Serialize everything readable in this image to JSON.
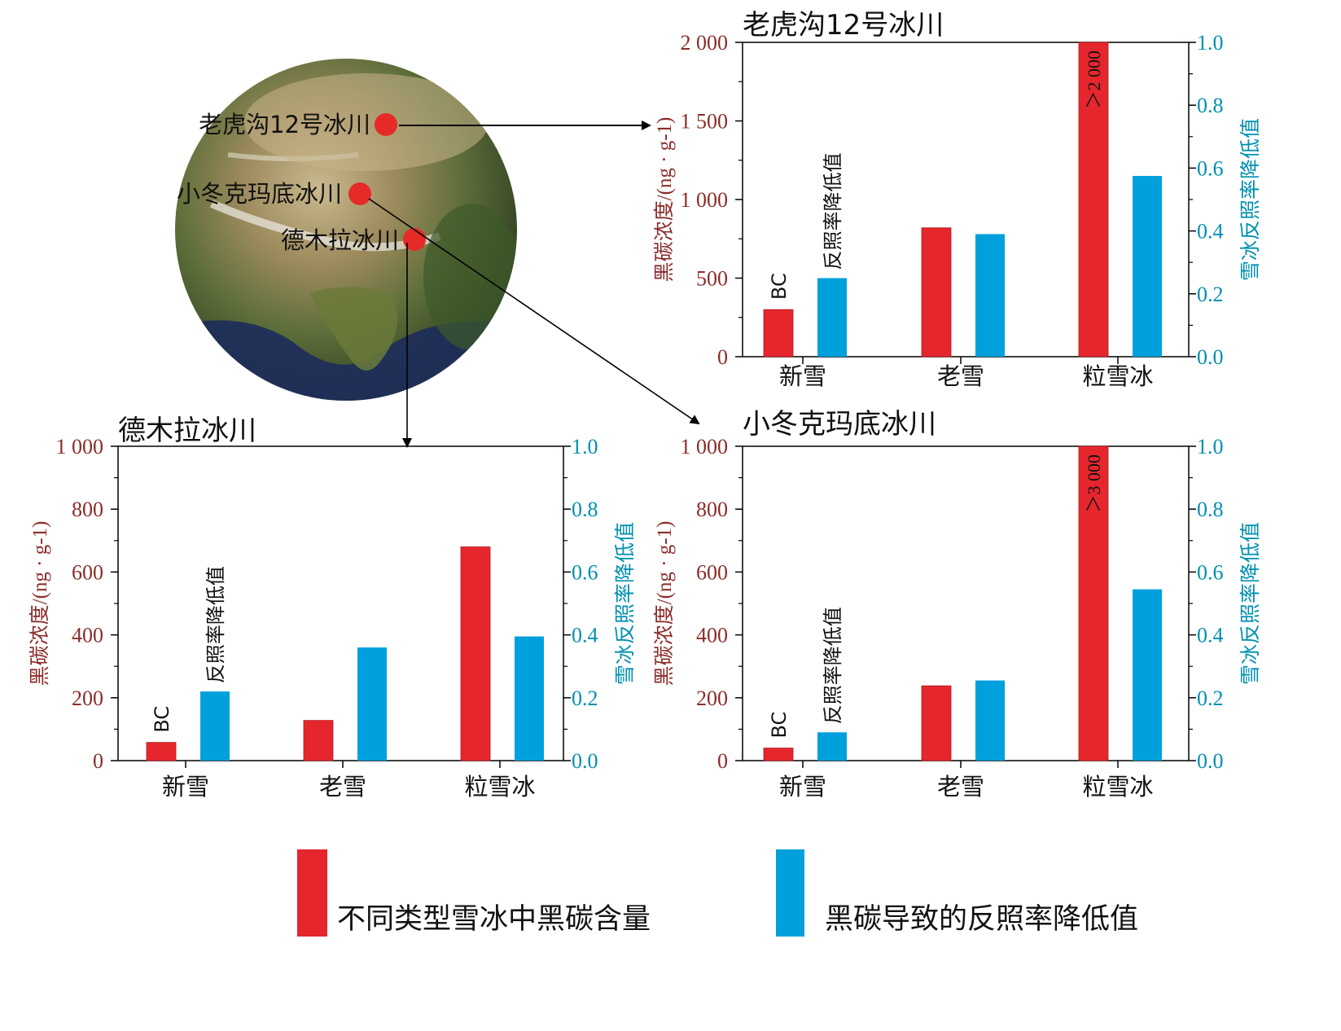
{
  "colors": {
    "bc": "#e5262d",
    "albedo": "#00a0dc",
    "left_axis": "#8b2d2a",
    "right_axis": "#0090b0",
    "dot": "#e52a27"
  },
  "map": {
    "label_laohugou": "老虎沟12号冰川",
    "label_xiaodongkemadi": "小冬克玛底冰川",
    "label_demula": "德木拉冰川"
  },
  "legend": {
    "bc_label": "不同类型雪冰中黑碳含量",
    "albedo_label": "黑碳导致的反照率降低值"
  },
  "chart_data": [
    {
      "id": "laohugou",
      "type": "bar",
      "title": "老虎沟12号冰川",
      "categories": [
        "新雪",
        "老雪",
        "粒雪冰"
      ],
      "series": [
        {
          "name": "BC",
          "axis": "left",
          "values": [
            300,
            820,
            2000
          ]
        },
        {
          "name": "反照率降低值",
          "axis": "right",
          "values": [
            0.25,
            0.39,
            0.575
          ]
        }
      ],
      "ylabel_left": "黑碳浓度/(ng · g-1)",
      "ylabel_right": "雪冰反照率降低值",
      "ylim_left": [
        0,
        2000
      ],
      "ylim_right": [
        0,
        1.0
      ],
      "left_ticks": [
        0,
        500,
        1000,
        1500,
        2000
      ],
      "left_tick_labels": [
        "0",
        "500",
        "1 000",
        "1 500",
        "2 000"
      ],
      "right_ticks": [
        0,
        0.2,
        0.4,
        0.6,
        0.8,
        1.0
      ],
      "right_tick_labels": [
        "0.0",
        "0.2",
        "0.4",
        "0.6",
        "0.8",
        "1.0"
      ],
      "bar_label_bc": "BC",
      "bar_label_albedo": "反照率降低值",
      "overflow_label": "＞2 000"
    },
    {
      "id": "demula",
      "type": "bar",
      "title": "德木拉冰川",
      "categories": [
        "新雪",
        "老雪",
        "粒雪冰"
      ],
      "series": [
        {
          "name": "BC",
          "axis": "left",
          "values": [
            58,
            128,
            680
          ]
        },
        {
          "name": "反照率降低值",
          "axis": "right",
          "values": [
            0.22,
            0.36,
            0.395
          ]
        }
      ],
      "ylabel_left": "黑碳浓度/(ng · g-1)",
      "ylabel_right": "雪冰反照率降低值",
      "ylim_left": [
        0,
        1000
      ],
      "ylim_right": [
        0,
        1.0
      ],
      "left_ticks": [
        0,
        200,
        400,
        600,
        800,
        1000
      ],
      "left_tick_labels": [
        "0",
        "200",
        "400",
        "600",
        "800",
        "1 000"
      ],
      "right_ticks": [
        0,
        0.2,
        0.4,
        0.6,
        0.8,
        1.0
      ],
      "right_tick_labels": [
        "0.0",
        "0.2",
        "0.4",
        "0.6",
        "0.8",
        "1.0"
      ],
      "bar_label_bc": "BC",
      "bar_label_albedo": "反照率降低值",
      "overflow_label": ""
    },
    {
      "id": "xiaodongkemadi",
      "type": "bar",
      "title": "小冬克玛底冰川",
      "categories": [
        "新雪",
        "老雪",
        "粒雪冰"
      ],
      "series": [
        {
          "name": "BC",
          "axis": "left",
          "values": [
            40,
            238,
            1000
          ]
        },
        {
          "name": "反照率降低值",
          "axis": "right",
          "values": [
            0.09,
            0.255,
            0.545
          ]
        }
      ],
      "ylabel_left": "黑碳浓度/(ng · g-1)",
      "ylabel_right": "雪冰反照率降低值",
      "ylim_left": [
        0,
        1000
      ],
      "ylim_right": [
        0,
        1.0
      ],
      "left_ticks": [
        0,
        200,
        400,
        600,
        800,
        1000
      ],
      "left_tick_labels": [
        "0",
        "200",
        "400",
        "600",
        "800",
        "1 000"
      ],
      "right_ticks": [
        0,
        0.2,
        0.4,
        0.6,
        0.8,
        1.0
      ],
      "right_tick_labels": [
        "0.0",
        "0.2",
        "0.4",
        "0.6",
        "0.8",
        "1.0"
      ],
      "bar_label_bc": "BC",
      "bar_label_albedo": "反照率降低值",
      "overflow_label": "＞3 000"
    }
  ]
}
